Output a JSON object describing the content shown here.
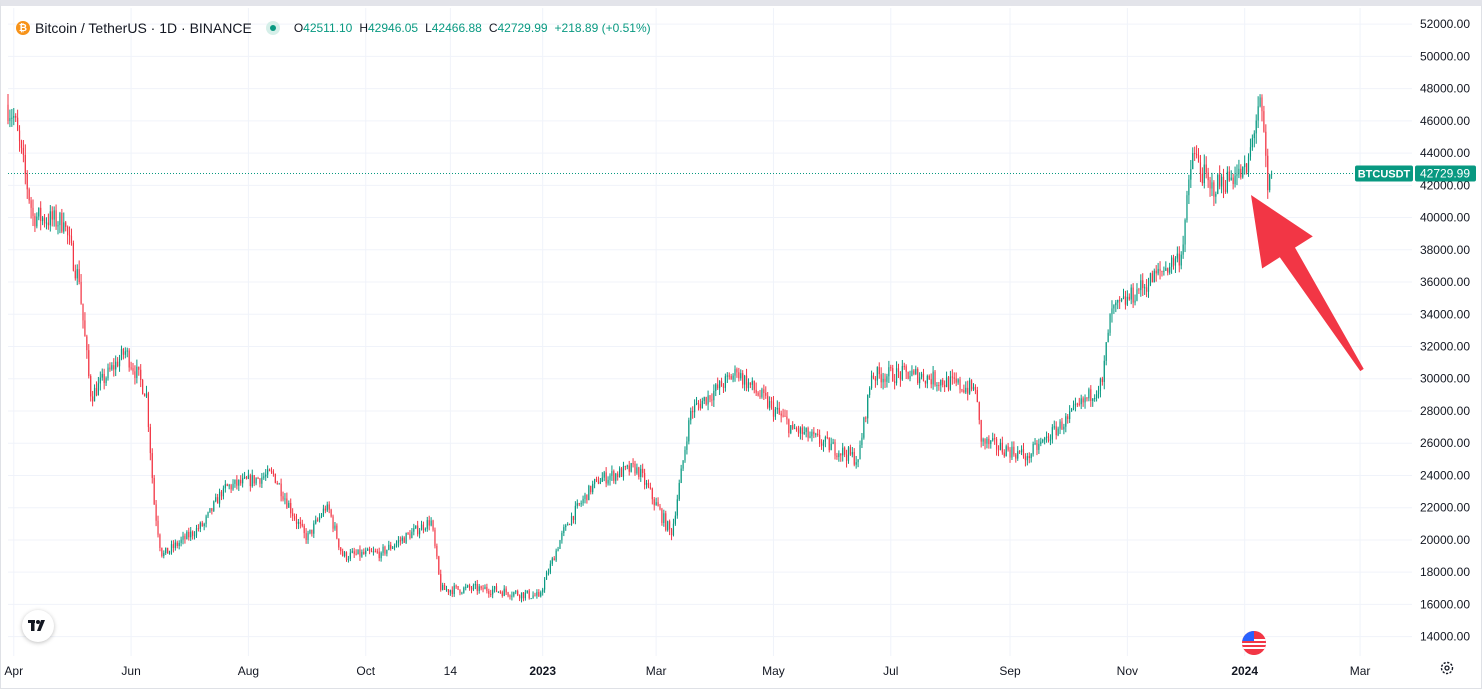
{
  "legend": {
    "coin_letter": "₿",
    "title": "Bitcoin / TetherUS · 1D · BINANCE",
    "open_key": "O",
    "open": "42511.10",
    "high_key": "H",
    "high": "42946.05",
    "low_key": "L",
    "low": "42466.88",
    "close_key": "C",
    "close": "42729.99",
    "change": "+218.89 (+0.51%)"
  },
  "price_label": {
    "symbol": "BTCUSDT",
    "value": "42729.99"
  },
  "colors": {
    "up": "#089981",
    "down": "#f23645",
    "grid": "#f0f3fa",
    "axis_text": "#131722",
    "arrow": "#f23645",
    "last_price": "#089981"
  },
  "icons": {
    "logo": "tradingview-logo-icon",
    "flag": "us-flag-icon",
    "settings": "gear-icon"
  },
  "chart_data": {
    "type": "candlestick",
    "symbol": "BTCUSDT",
    "interval": "1D",
    "exchange": "BINANCE",
    "y_axis": {
      "ylim": [
        12800,
        53000
      ],
      "ticks": [
        14000,
        16000,
        18000,
        20000,
        22000,
        24000,
        26000,
        28000,
        30000,
        32000,
        34000,
        36000,
        38000,
        40000,
        42000,
        44000,
        46000,
        48000,
        50000,
        52000
      ],
      "tick_labels": [
        "14000.00",
        "16000.00",
        "18000.00",
        "20000.00",
        "22000.00",
        "24000.00",
        "26000.00",
        "28000.00",
        "30000.00",
        "32000.00",
        "34000.00",
        "36000.00",
        "38000.00",
        "40000.00",
        "42000.00",
        "44000.00",
        "46000.00",
        "48000.00",
        "50000.00",
        "52000.00"
      ]
    },
    "x_axis": {
      "range": [
        "2022-03-29",
        "2024-03-28"
      ],
      "ticks": [
        {
          "date": "2022-04-01",
          "label": "Apr",
          "bold": false
        },
        {
          "date": "2022-06-01",
          "label": "Jun",
          "bold": false
        },
        {
          "date": "2022-08-01",
          "label": "Aug",
          "bold": false
        },
        {
          "date": "2022-10-01",
          "label": "Oct",
          "bold": false
        },
        {
          "date": "2022-11-14",
          "label": "14",
          "bold": false
        },
        {
          "date": "2023-01-01",
          "label": "2023",
          "bold": true
        },
        {
          "date": "2023-03-01",
          "label": "Mar",
          "bold": false
        },
        {
          "date": "2023-05-01",
          "label": "May",
          "bold": false
        },
        {
          "date": "2023-07-01",
          "label": "Jul",
          "bold": false
        },
        {
          "date": "2023-09-01",
          "label": "Sep",
          "bold": false
        },
        {
          "date": "2023-11-01",
          "label": "Nov",
          "bold": false
        },
        {
          "date": "2024-01-01",
          "label": "2024",
          "bold": true
        },
        {
          "date": "2024-03-01",
          "label": "Mar",
          "bold": false
        }
      ]
    },
    "grid": true,
    "last_price": 42729.99,
    "anchors": [
      {
        "date": "2022-03-29",
        "close": 47000
      },
      {
        "date": "2022-04-02",
        "close": 46300
      },
      {
        "date": "2022-04-12",
        "close": 40100
      },
      {
        "date": "2022-04-28",
        "close": 39700
      },
      {
        "date": "2022-05-06",
        "close": 36000
      },
      {
        "date": "2022-05-12",
        "close": 28900
      },
      {
        "date": "2022-05-30",
        "close": 31700
      },
      {
        "date": "2022-06-10",
        "close": 29100
      },
      {
        "date": "2022-06-14",
        "close": 22200
      },
      {
        "date": "2022-06-18",
        "close": 19000
      },
      {
        "date": "2022-07-10",
        "close": 21000
      },
      {
        "date": "2022-07-20",
        "close": 23200
      },
      {
        "date": "2022-08-15",
        "close": 24100
      },
      {
        "date": "2022-09-01",
        "close": 20000
      },
      {
        "date": "2022-09-12",
        "close": 22200
      },
      {
        "date": "2022-09-20",
        "close": 19000
      },
      {
        "date": "2022-10-10",
        "close": 19200
      },
      {
        "date": "2022-11-05",
        "close": 21200
      },
      {
        "date": "2022-11-10",
        "close": 16900
      },
      {
        "date": "2022-12-01",
        "close": 17000
      },
      {
        "date": "2022-12-31",
        "close": 16500
      },
      {
        "date": "2023-01-14",
        "close": 20900
      },
      {
        "date": "2023-01-30",
        "close": 23700
      },
      {
        "date": "2023-02-20",
        "close": 24500
      },
      {
        "date": "2023-03-10",
        "close": 20300
      },
      {
        "date": "2023-03-20",
        "close": 28000
      },
      {
        "date": "2023-04-13",
        "close": 30400
      },
      {
        "date": "2023-05-12",
        "close": 26900
      },
      {
        "date": "2023-06-15",
        "close": 25000
      },
      {
        "date": "2023-06-22",
        "close": 30200
      },
      {
        "date": "2023-07-14",
        "close": 30300
      },
      {
        "date": "2023-08-15",
        "close": 29300
      },
      {
        "date": "2023-08-18",
        "close": 26100
      },
      {
        "date": "2023-09-11",
        "close": 25200
      },
      {
        "date": "2023-10-02",
        "close": 27500
      },
      {
        "date": "2023-10-20",
        "close": 29800
      },
      {
        "date": "2023-10-24",
        "close": 34000
      },
      {
        "date": "2023-11-08",
        "close": 35500
      },
      {
        "date": "2023-11-30",
        "close": 37700
      },
      {
        "date": "2023-12-06",
        "close": 44000
      },
      {
        "date": "2023-12-15",
        "close": 41800
      },
      {
        "date": "2023-12-28",
        "close": 42600
      },
      {
        "date": "2024-01-03",
        "close": 42800
      },
      {
        "date": "2024-01-09",
        "close": 46900
      },
      {
        "date": "2024-01-11",
        "close": 46600
      },
      {
        "date": "2024-01-14",
        "close": 41700
      },
      {
        "date": "2024-01-16",
        "close": 42730
      }
    ]
  }
}
